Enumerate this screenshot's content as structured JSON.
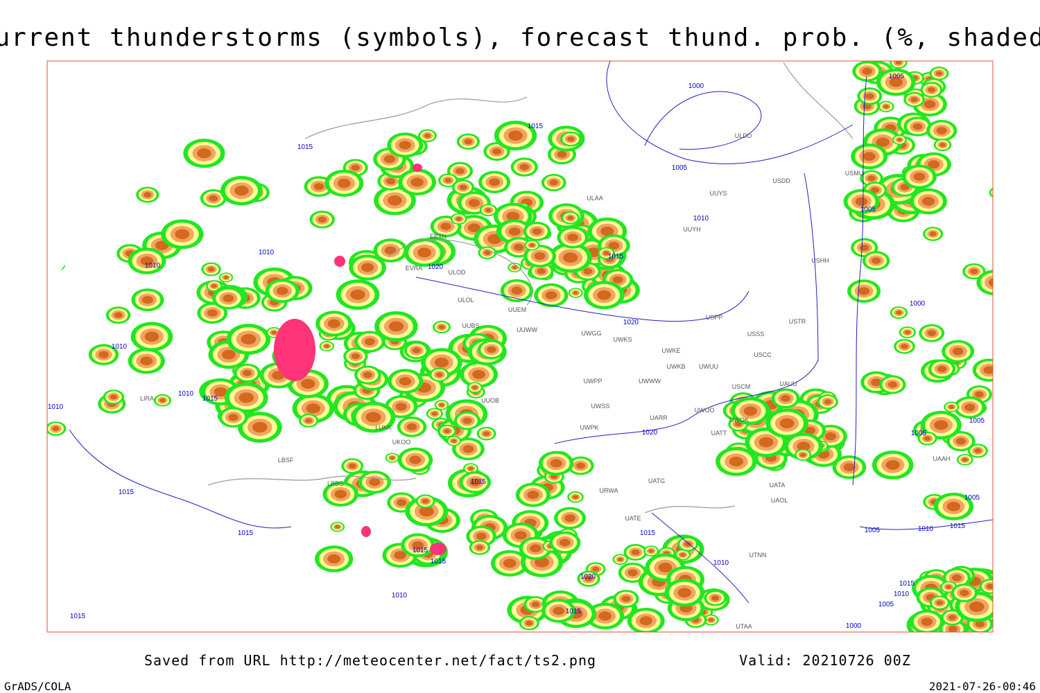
{
  "header": {
    "title": "Current thunderstorms (symbols), forecast thund. prob. (%, shaded)"
  },
  "map": {
    "isobar_labels": [
      1015,
      1010,
      1010,
      1010,
      1010,
      1015,
      1010,
      1015,
      1015,
      1015,
      1015,
      1015,
      1010,
      1015,
      1020,
      1015,
      1010,
      1015,
      1020,
      1020,
      1020,
      1015,
      1010,
      1005,
      1015,
      1000,
      1005,
      1005,
      1000,
      1005,
      1005,
      1005,
      1005,
      1010,
      1015,
      1015,
      1010,
      1005,
      1000
    ],
    "station_labels": [
      "ULDD",
      "USMU",
      "USDD",
      "ULAA",
      "UUYS",
      "UUYH",
      "EETN",
      "EVRA",
      "ULOD",
      "ULOL",
      "UUEM",
      "USHH",
      "USTR",
      "USPP",
      "UUWW",
      "UUBS",
      "UWGG",
      "UWKS",
      "USSS",
      "UWKE",
      "USCC",
      "UWKB",
      "UWUU",
      "UWPP",
      "UWWW",
      "USCM",
      "UAUU",
      "UUOB",
      "UWSS",
      "UWOO",
      "UARR",
      "UWOK",
      "LUKK",
      "UWPK",
      "UATT",
      "UKOO",
      "LBSF",
      "LBBG",
      "UATG",
      "UATA",
      "URWA",
      "UAOL",
      "UATE",
      "UTNN",
      "UAAH",
      "UTAA",
      "LIRA"
    ]
  },
  "footer": {
    "source": "Saved from URL http://meteocenter.net/fact/ts2.png",
    "valid": "Valid: 20210726 00Z",
    "software": "GrADS/COLA",
    "timestamp": "2021-07-26-00:46"
  }
}
